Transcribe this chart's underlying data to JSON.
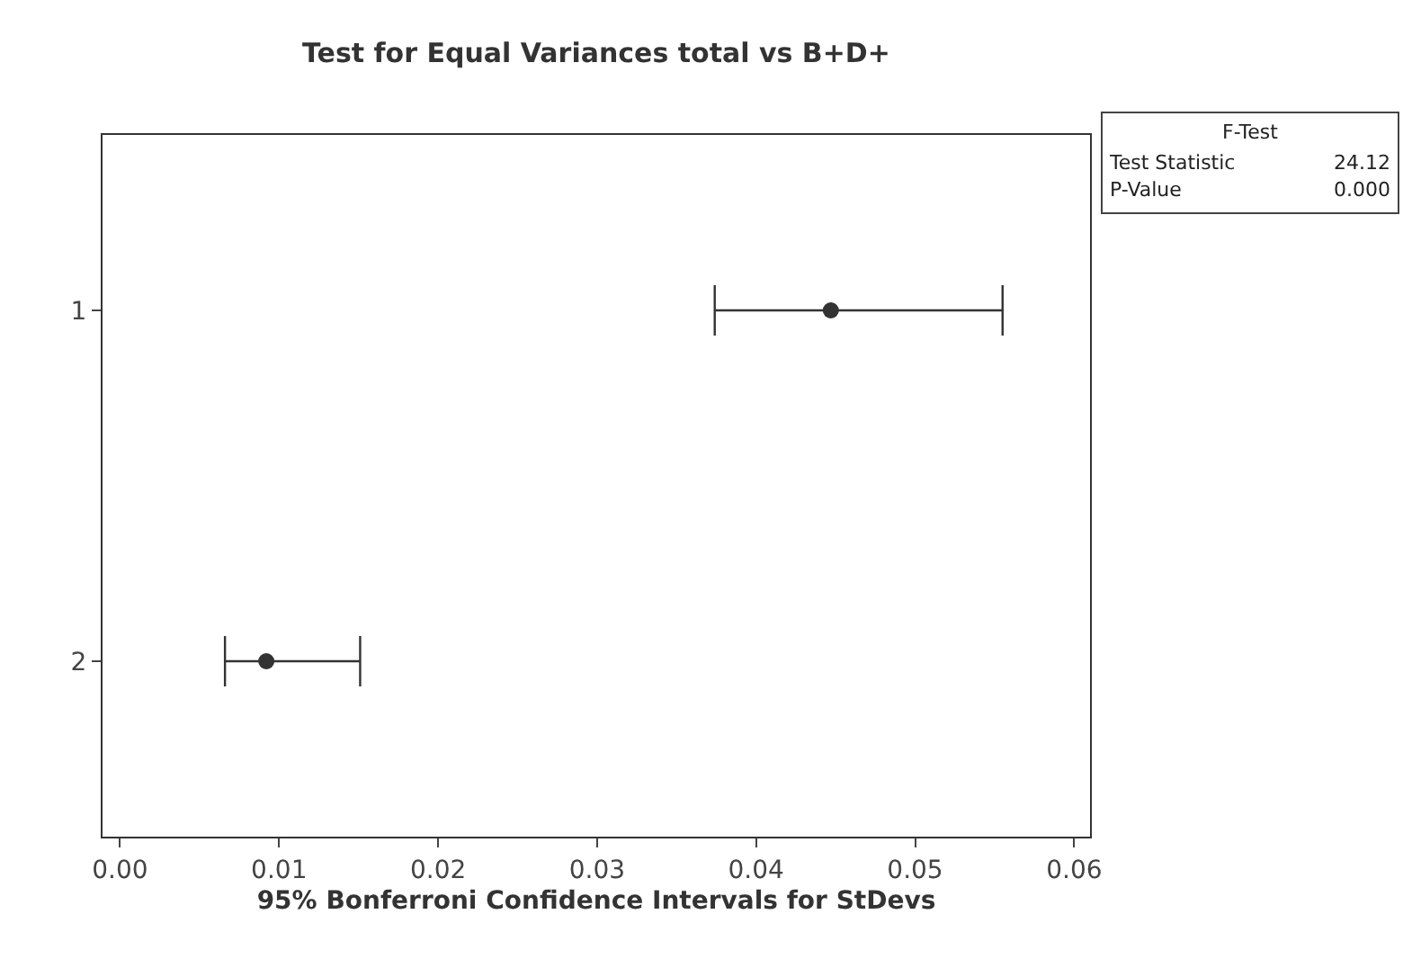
{
  "chart_data": {
    "type": "scatter",
    "title": "Test for Equal Variances total vs B+D+",
    "xlabel": "95% Bonferroni Confidence Intervals for StDevs",
    "orientation": "horizontal",
    "categories": [
      "1",
      "2"
    ],
    "values": [
      0.0447,
      0.0092
    ],
    "errors": [
      [
        0.0374,
        0.0555
      ],
      [
        0.0066,
        0.0151
      ]
    ],
    "color": "#333333",
    "marker": "circle",
    "xlim": [
      -0.0011,
      0.061
    ],
    "xticks": [
      {
        "value": 0,
        "label": "0.00"
      },
      {
        "value": 0.01,
        "label": "0.01"
      },
      {
        "value": 0.02,
        "label": "0.02"
      },
      {
        "value": 0.03,
        "label": "0.03"
      },
      {
        "value": 0.04,
        "label": "0.04"
      },
      {
        "value": 0.05,
        "label": "0.05"
      },
      {
        "value": 0.06,
        "label": "0.06"
      }
    ],
    "grid": false,
    "annotations": [
      "F-Test",
      "Test Statistic",
      "24.12",
      "P-Value",
      "0.000"
    ]
  }
}
